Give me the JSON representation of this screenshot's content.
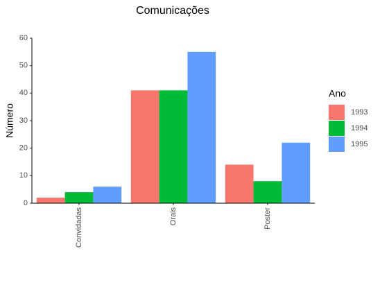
{
  "chart_data": {
    "type": "bar",
    "title": "Comunicações",
    "y_label": "Número",
    "categories": [
      "Convidadas",
      "Orais",
      "Poster"
    ],
    "legend_title": "Ano",
    "series": [
      {
        "name": "1993",
        "color": "#f8766d",
        "values": [
          2,
          41,
          14
        ]
      },
      {
        "name": "1994",
        "color": "#00ba38",
        "values": [
          4,
          41,
          8
        ]
      },
      {
        "name": "1995",
        "color": "#619cff",
        "values": [
          6,
          55,
          22
        ]
      }
    ],
    "ylim": [
      0,
      60
    ],
    "yticks": [
      0,
      10,
      20,
      30,
      40,
      50,
      60
    ],
    "grid": false,
    "legend": "right"
  }
}
